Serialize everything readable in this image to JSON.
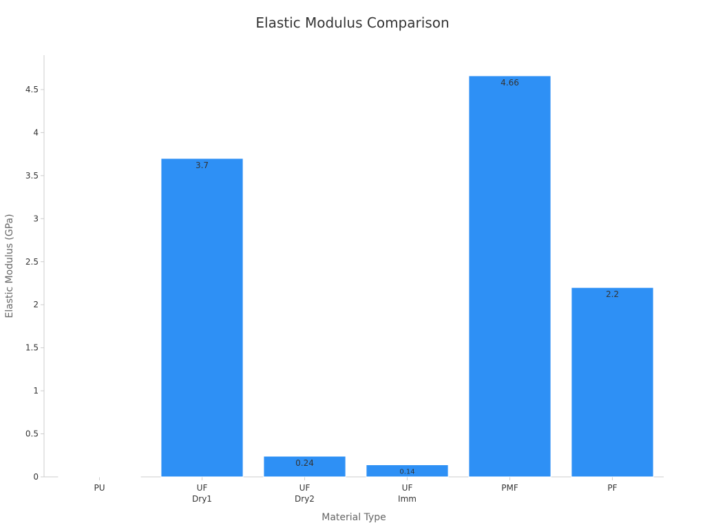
{
  "chart_data": {
    "type": "bar",
    "title": "Elastic Modulus Comparison",
    "xlabel": "Material Type",
    "ylabel": "Elastic Modulus (GPa)",
    "categories": [
      [
        "PU"
      ],
      [
        "UF",
        "Dry1"
      ],
      [
        "UF",
        "Dry2"
      ],
      [
        "UF",
        "Imm"
      ],
      [
        "PMF"
      ],
      [
        "PF"
      ]
    ],
    "values": [
      0,
      3.7,
      0.24,
      0.14,
      4.66,
      2.2
    ],
    "data_labels": [
      "",
      "3.7",
      "0.24",
      "0.14",
      "4.66",
      "2.2"
    ],
    "ylim": [
      0,
      4.9
    ],
    "yticks": [
      0,
      0.5,
      1,
      1.5,
      2,
      2.5,
      3,
      3.5,
      4,
      4.5
    ],
    "ytick_labels": [
      "0",
      "0.5",
      "1",
      "1.5",
      "2",
      "2.5",
      "3",
      "3.5",
      "4",
      "4.5"
    ],
    "grid": false,
    "legend": "none",
    "colors": {
      "bar": "#2e90f5",
      "bar_stroke": "#ffffff",
      "axis": "#cccccc",
      "text": "#333333",
      "axis_label": "#666666"
    }
  }
}
